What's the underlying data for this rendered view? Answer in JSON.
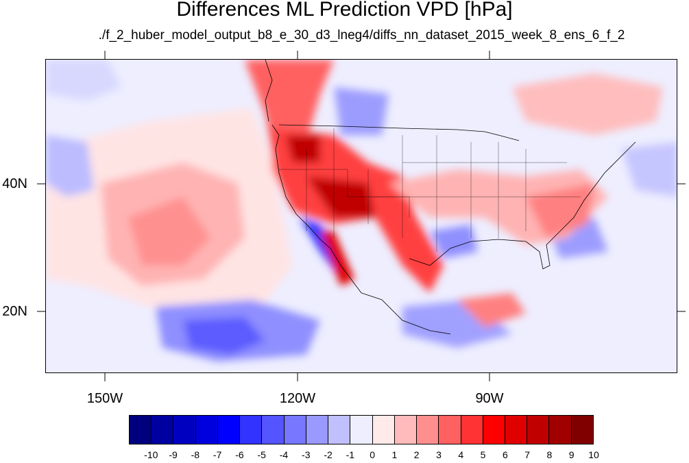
{
  "title": "Differences ML Prediction VPD [hPa]",
  "subtitle": "./f_2_huber_model_output_b8_e_30_d3_lneg4/diffs_nn_dataset_2015_week_8_ens_6_f_2",
  "map": {
    "projection": "cylindrical equidistant",
    "lon_range": [
      -160,
      -62
    ],
    "lat_range": [
      11,
      59
    ],
    "variable": "VPD difference",
    "units": "hPa"
  },
  "lon_ticks": [
    {
      "label": "150W"
    },
    {
      "label": "120W"
    },
    {
      "label": "90W"
    }
  ],
  "lat_ticks": [
    {
      "label": "40N"
    },
    {
      "label": "20N"
    }
  ],
  "colorbar": {
    "labels": [
      "-10",
      "-9",
      "-8",
      "-7",
      "-6",
      "-5",
      "-4",
      "-3",
      "-2",
      "-1",
      "0",
      "1",
      "2",
      "3",
      "4",
      "5",
      "6",
      "7",
      "8",
      "9",
      "10"
    ],
    "colors": [
      "#00007f",
      "#0000a0",
      "#0000c0",
      "#0000df",
      "#0000ff",
      "#3333ff",
      "#5555ff",
      "#7777ff",
      "#9999ff",
      "#c0c0ff",
      "#eeeeff",
      "#ffeaea",
      "#ffbbbb",
      "#ff8f8f",
      "#ff6060",
      "#ff3333",
      "#ff0000",
      "#e00000",
      "#c00000",
      "#a00000",
      "#800000"
    ]
  }
}
